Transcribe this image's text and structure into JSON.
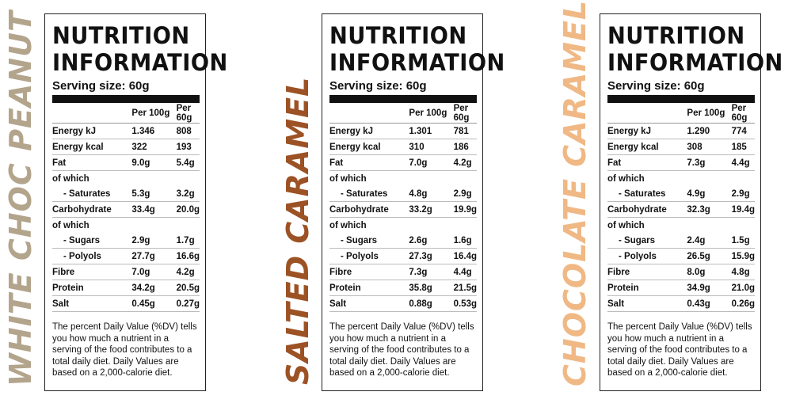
{
  "colors": {
    "flavor1": "#b3a48c",
    "flavor2": "#9c5224",
    "flavor3": "#f0b884"
  },
  "panels": [
    {
      "flavor": "WHITE CHOC PEANUT",
      "title1": "NUTRITION",
      "title2": "INFORMATION",
      "serving": "Serving size: 60g",
      "col1": "Per 100g",
      "col2": "Per 60g",
      "rows": [
        {
          "label": "Energy kJ",
          "v1": "1.346",
          "v2": "808"
        },
        {
          "label": "Energy kcal",
          "v1": "322",
          "v2": "193"
        },
        {
          "label": "Fat",
          "v1": "9.0g",
          "v2": "5.4g"
        },
        {
          "label": "of which",
          "v1": "",
          "v2": ""
        },
        {
          "label": "- Saturates",
          "v1": "5.3g",
          "v2": "3.2g"
        },
        {
          "label": "Carbohydrate",
          "v1": "33.4g",
          "v2": "20.0g"
        },
        {
          "label": "of which",
          "v1": "",
          "v2": ""
        },
        {
          "label": "- Sugars",
          "v1": "2.9g",
          "v2": "1.7g"
        },
        {
          "label": "- Polyols",
          "v1": "27.7g",
          "v2": "16.6g"
        },
        {
          "label": "Fibre",
          "v1": "7.0g",
          "v2": "4.2g"
        },
        {
          "label": "Protein",
          "v1": "34.2g",
          "v2": "20.5g"
        },
        {
          "label": "Salt",
          "v1": "0.45g",
          "v2": "0.27g"
        }
      ],
      "note": "The percent Daily Value (%DV) tells you how much a nutrient in a serving of the food contributes to a total daily diet. Daily Values are based on a 2,000-calorie diet."
    },
    {
      "flavor": "SALTED CARAMEL",
      "title1": "NUTRITION",
      "title2": "INFORMATION",
      "serving": "Serving size: 60g",
      "col1": "Per 100g",
      "col2": "Per 60g",
      "rows": [
        {
          "label": "Energy kJ",
          "v1": "1.301",
          "v2": "781"
        },
        {
          "label": "Energy kcal",
          "v1": "310",
          "v2": "186"
        },
        {
          "label": "Fat",
          "v1": "7.0g",
          "v2": "4.2g"
        },
        {
          "label": "of which",
          "v1": "",
          "v2": ""
        },
        {
          "label": "- Saturates",
          "v1": "4.8g",
          "v2": "2.9g"
        },
        {
          "label": "Carbohydrate",
          "v1": "33.2g",
          "v2": "19.9g"
        },
        {
          "label": "of which",
          "v1": "",
          "v2": ""
        },
        {
          "label": "- Sugars",
          "v1": "2.6g",
          "v2": "1.6g"
        },
        {
          "label": "- Polyols",
          "v1": "27.3g",
          "v2": "16.4g"
        },
        {
          "label": "Fibre",
          "v1": "7.3g",
          "v2": "4.4g"
        },
        {
          "label": "Protein",
          "v1": "35.8g",
          "v2": "21.5g"
        },
        {
          "label": "Salt",
          "v1": "0.88g",
          "v2": "0.53g"
        }
      ],
      "note": "The percent Daily Value (%DV) tells you how much a nutrient in a serving of the food contributes to a total daily diet. Daily Values are based on a 2,000-calorie diet."
    },
    {
      "flavor": "CHOCOLATE CARAMEL",
      "title1": "NUTRITION",
      "title2": "INFORMATION",
      "serving": "Serving size: 60g",
      "col1": "Per 100g",
      "col2": "Per 60g",
      "rows": [
        {
          "label": "Energy kJ",
          "v1": "1.290",
          "v2": "774"
        },
        {
          "label": "Energy kcal",
          "v1": "308",
          "v2": "185"
        },
        {
          "label": "Fat",
          "v1": "7.3g",
          "v2": "4.4g"
        },
        {
          "label": "of which",
          "v1": "",
          "v2": ""
        },
        {
          "label": "- Saturates",
          "v1": "4.9g",
          "v2": "2.9g"
        },
        {
          "label": "Carbohydrate",
          "v1": "32.3g",
          "v2": "19.4g"
        },
        {
          "label": "of which",
          "v1": "",
          "v2": ""
        },
        {
          "label": "- Sugars",
          "v1": "2.4g",
          "v2": "1.5g"
        },
        {
          "label": "- Polyols",
          "v1": "26.5g",
          "v2": "15.9g"
        },
        {
          "label": "Fibre",
          "v1": "8.0g",
          "v2": "4.8g"
        },
        {
          "label": "Protein",
          "v1": "34.9g",
          "v2": "21.0g"
        },
        {
          "label": "Salt",
          "v1": "0.43g",
          "v2": "0.26g"
        }
      ],
      "note": "The percent Daily Value (%DV) tells you how much a nutrient in a serving of the food contributes to a total daily diet. Daily Values are based on a 2,000-calorie diet."
    }
  ]
}
